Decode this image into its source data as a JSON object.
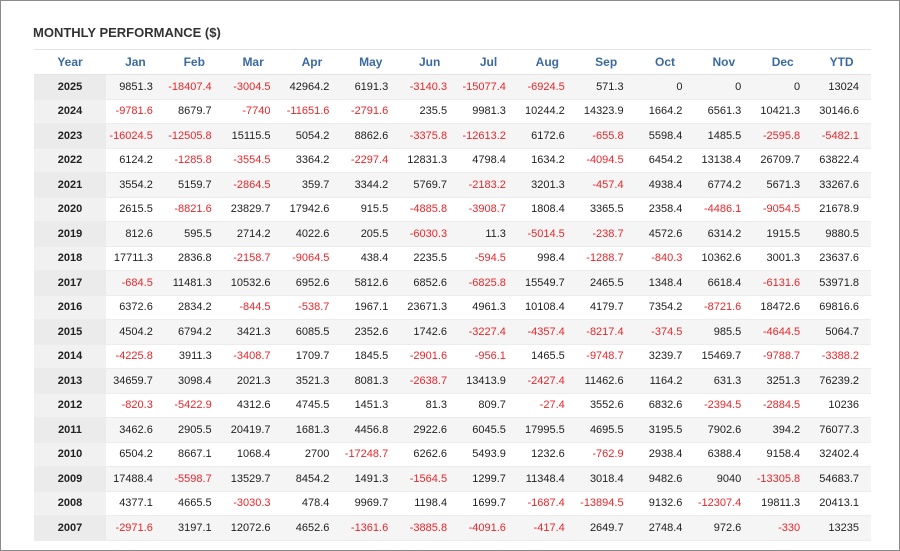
{
  "title": "MONTHLY PERFORMANCE ($)",
  "table": {
    "header": [
      "Year",
      "Jan",
      "Feb",
      "Mar",
      "Apr",
      "May",
      "Jun",
      "Jul",
      "Aug",
      "Sep",
      "Oct",
      "Nov",
      "Dec",
      "YTD"
    ],
    "rows": [
      [
        "2025",
        "9851.3",
        "-18407.4",
        "-3004.5",
        "42964.2",
        "6191.3",
        "-3140.3",
        "-15077.4",
        "-6924.5",
        "571.3",
        "0",
        "0",
        "0",
        "13024"
      ],
      [
        "2024",
        "-9781.6",
        "8679.7",
        "-7740",
        "-11651.6",
        "-2791.6",
        "235.5",
        "9981.3",
        "10244.2",
        "14323.9",
        "1664.2",
        "6561.3",
        "10421.3",
        "30146.6"
      ],
      [
        "2023",
        "-16024.5",
        "-12505.8",
        "15115.5",
        "5054.2",
        "8862.6",
        "-3375.8",
        "-12613.2",
        "6172.6",
        "-655.8",
        "5598.4",
        "1485.5",
        "-2595.8",
        "-5482.1"
      ],
      [
        "2022",
        "6124.2",
        "-1285.8",
        "-3554.5",
        "3364.2",
        "-2297.4",
        "12831.3",
        "4798.4",
        "1634.2",
        "-4094.5",
        "6454.2",
        "13138.4",
        "26709.7",
        "63822.4"
      ],
      [
        "2021",
        "3554.2",
        "5159.7",
        "-2864.5",
        "359.7",
        "3344.2",
        "5769.7",
        "-2183.2",
        "3201.3",
        "-457.4",
        "4938.4",
        "6774.2",
        "5671.3",
        "33267.6"
      ],
      [
        "2020",
        "2615.5",
        "-8821.6",
        "23829.7",
        "17942.6",
        "915.5",
        "-4885.8",
        "-3908.7",
        "1808.4",
        "3365.5",
        "2358.4",
        "-4486.1",
        "-9054.5",
        "21678.9"
      ],
      [
        "2019",
        "812.6",
        "595.5",
        "2714.2",
        "4022.6",
        "205.5",
        "-6030.3",
        "11.3",
        "-5014.5",
        "-238.7",
        "4572.6",
        "6314.2",
        "1915.5",
        "9880.5"
      ],
      [
        "2018",
        "17711.3",
        "2836.8",
        "-2158.7",
        "-9064.5",
        "438.4",
        "2235.5",
        "-594.5",
        "998.4",
        "-1288.7",
        "-840.3",
        "10362.6",
        "3001.3",
        "23637.6"
      ],
      [
        "2017",
        "-684.5",
        "11481.3",
        "10532.6",
        "6952.6",
        "5812.6",
        "6852.6",
        "-6825.8",
        "15549.7",
        "2465.5",
        "1348.4",
        "6618.4",
        "-6131.6",
        "53971.8"
      ],
      [
        "2016",
        "6372.6",
        "2834.2",
        "-844.5",
        "-538.7",
        "1967.1",
        "23671.3",
        "4961.3",
        "10108.4",
        "4179.7",
        "7354.2",
        "-8721.6",
        "18472.6",
        "69816.6"
      ],
      [
        "2015",
        "4504.2",
        "6794.2",
        "3421.3",
        "6085.5",
        "2352.6",
        "1742.6",
        "-3227.4",
        "-4357.4",
        "-8217.4",
        "-374.5",
        "985.5",
        "-4644.5",
        "5064.7"
      ],
      [
        "2014",
        "-4225.8",
        "3911.3",
        "-3408.7",
        "1709.7",
        "1845.5",
        "-2901.6",
        "-956.1",
        "1465.5",
        "-9748.7",
        "3239.7",
        "15469.7",
        "-9788.7",
        "-3388.2"
      ],
      [
        "2013",
        "34659.7",
        "3098.4",
        "2021.3",
        "3521.3",
        "8081.3",
        "-2638.7",
        "13413.9",
        "-2427.4",
        "11462.6",
        "1164.2",
        "631.3",
        "3251.3",
        "76239.2"
      ],
      [
        "2012",
        "-820.3",
        "-5422.9",
        "4312.6",
        "4745.5",
        "1451.3",
        "81.3",
        "809.7",
        "-27.4",
        "3552.6",
        "6832.6",
        "-2394.5",
        "-2884.5",
        "10236"
      ],
      [
        "2011",
        "3462.6",
        "2905.5",
        "20419.7",
        "1681.3",
        "4456.8",
        "2922.6",
        "6045.5",
        "17995.5",
        "4695.5",
        "3195.5",
        "7902.6",
        "394.2",
        "76077.3"
      ],
      [
        "2010",
        "6504.2",
        "8667.1",
        "1068.4",
        "2700",
        "-17248.7",
        "6262.6",
        "5493.9",
        "1232.6",
        "-762.9",
        "2938.4",
        "6388.4",
        "9158.4",
        "32402.4"
      ],
      [
        "2009",
        "17488.4",
        "-5598.7",
        "13529.7",
        "8454.2",
        "1491.3",
        "-1564.5",
        "1299.7",
        "11348.4",
        "3018.4",
        "9482.6",
        "9040",
        "-13305.8",
        "54683.7"
      ],
      [
        "2008",
        "4377.1",
        "4665.5",
        "-3030.3",
        "478.4",
        "9969.7",
        "1198.4",
        "1699.7",
        "-1687.4",
        "-13894.5",
        "9132.6",
        "-12307.4",
        "19811.3",
        "20413.1"
      ],
      [
        "2007",
        "-2971.6",
        "3197.1",
        "12072.6",
        "4652.6",
        "-1361.6",
        "-3885.8",
        "-4091.6",
        "-417.4",
        "2649.7",
        "2748.4",
        "972.6",
        "-330",
        "13235"
      ]
    ]
  }
}
